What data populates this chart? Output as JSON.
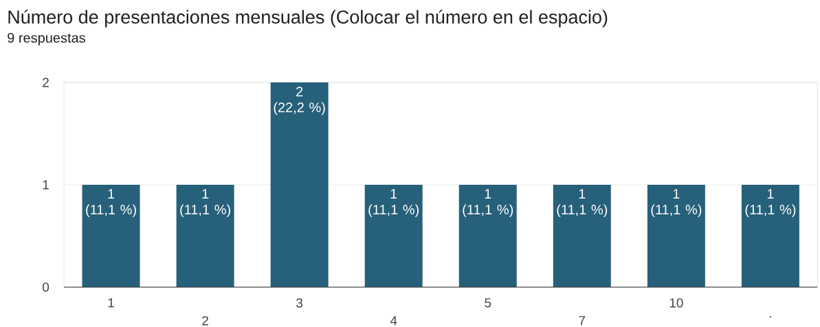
{
  "chart_data": {
    "type": "bar",
    "title": "Número de presentaciones mensuales  (Colocar el número en el espacio)",
    "subtitle": "9 respuestas",
    "categories": [
      "1",
      "2",
      "3",
      "4",
      "5",
      "7",
      "10",
      "."
    ],
    "values": [
      1,
      1,
      2,
      1,
      1,
      1,
      1,
      1
    ],
    "color": "#27607a",
    "value_labels": [
      "1 (11,1 %)",
      "1 (11,1 %)",
      "2 (22,2 %)",
      "1 (11,1 %)",
      "1 (11,1 %)",
      "1 (11,1 %)",
      "1 (11,1 %)",
      "1 (11,1 %)"
    ],
    "ylim": [
      0,
      2
    ],
    "yticks": [
      0,
      1,
      2
    ],
    "grid": "y"
  }
}
